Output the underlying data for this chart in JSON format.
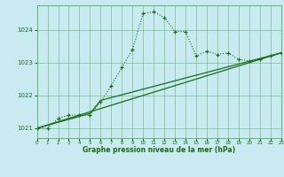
{
  "title": "Graphe pression niveau de la mer (hPa)",
  "bg_color": "#c8eaf0",
  "grid_color": "#5db870",
  "line_color": "#1a6b1a",
  "x_min": 0,
  "x_max": 23,
  "y_min": 1020.7,
  "y_max": 1024.75,
  "x_ticks": [
    0,
    1,
    2,
    3,
    4,
    5,
    6,
    7,
    8,
    9,
    10,
    11,
    12,
    13,
    14,
    15,
    16,
    17,
    18,
    19,
    20,
    21,
    22,
    23
  ],
  "y_ticks": [
    1021,
    1022,
    1023,
    1024
  ],
  "series1_x": [
    0,
    1,
    2,
    3,
    4,
    5,
    6,
    7,
    8,
    9,
    10,
    11,
    12,
    13,
    14,
    15,
    16,
    17,
    18,
    19,
    20,
    21,
    22,
    23
  ],
  "series1_y": [
    1021.0,
    1021.0,
    1021.3,
    1021.4,
    1021.4,
    1021.4,
    1021.8,
    1022.3,
    1022.85,
    1023.4,
    1024.5,
    1024.55,
    1024.38,
    1023.95,
    1023.95,
    1023.2,
    1023.35,
    1023.25,
    1023.3,
    1023.1,
    1023.05,
    1023.1,
    1023.2,
    1023.3
  ],
  "series2_x": [
    0,
    23
  ],
  "series2_y": [
    1021.0,
    1023.3
  ],
  "series3_x": [
    0,
    5,
    6,
    23
  ],
  "series3_y": [
    1021.0,
    1021.45,
    1021.85,
    1023.3
  ]
}
